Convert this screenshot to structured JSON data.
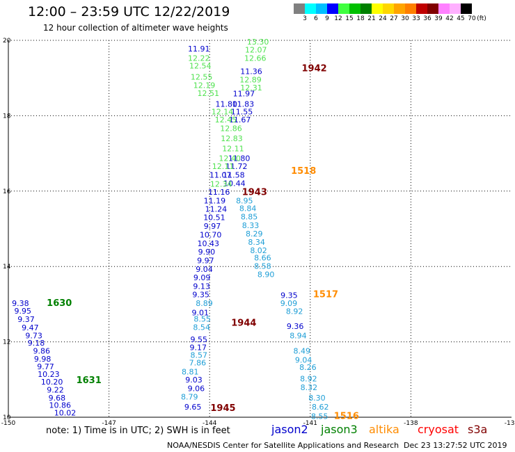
{
  "header": {
    "title": "12:00 – 23:59 UTC 12/22/2019",
    "subtitle": "12 hour collection of altimeter wave heights"
  },
  "colorbar": {
    "unit_label": "(ft)",
    "ticks": [
      "3",
      "6",
      "9",
      "12",
      "15",
      "18",
      "21",
      "24",
      "27",
      "30",
      "33",
      "36",
      "39",
      "42",
      "45",
      "70"
    ],
    "colors": [
      "#808080",
      "#00ffff",
      "#00bfff",
      "#0000ff",
      "#40ff40",
      "#00c000",
      "#008000",
      "#ffff00",
      "#ffd700",
      "#ffa500",
      "#ff7f00",
      "#c00000",
      "#800000",
      "#ff80ff",
      "#ffb0ff",
      "#000000"
    ]
  },
  "note": "note: 1) Time is in UTC; 2) SWH is in feet",
  "legend": [
    {
      "name": "jason2",
      "color": "#0000cc"
    },
    {
      "name": "jason3",
      "color": "#008000"
    },
    {
      "name": "altika",
      "color": "#ff8c00"
    },
    {
      "name": "cryosat",
      "color": "#ff0000"
    },
    {
      "name": "s3a",
      "color": "#800000"
    }
  ],
  "footer": {
    "left": "NOAA/NESDIS Center for Satellite Applications and Research",
    "right": "Dec 23 13:27:52 UTC 2019"
  },
  "chart_data": {
    "type": "scatter",
    "title": "",
    "xlabel": "",
    "ylabel": "",
    "xlim": [
      -150,
      -135
    ],
    "ylim": [
      10,
      20
    ],
    "xticks": [
      -150,
      -147,
      -144,
      -141,
      -138,
      -135
    ],
    "yticks": [
      10,
      12,
      14,
      16,
      18,
      20
    ],
    "x_tick_labels": [
      "-150",
      "-147",
      "-144",
      "-141",
      "-138",
      "-135"
    ],
    "y_tick_labels": [
      "10",
      "12",
      "14",
      "16",
      "18",
      "20"
    ],
    "grid": true,
    "series": [
      {
        "name": "blue-track-left",
        "color": "#0000cc",
        "points": [
          {
            "x": -144.32,
            "y": 19.78,
            "v": "11.91"
          },
          {
            "x": -142.76,
            "y": 19.18,
            "v": "11.36"
          },
          {
            "x": -142.98,
            "y": 18.59,
            "v": "11.97"
          },
          {
            "x": -143.5,
            "y": 18.31,
            "v": "11.80"
          },
          {
            "x": -143.0,
            "y": 18.31,
            "v": "11.83"
          },
          {
            "x": -143.04,
            "y": 18.11,
            "v": "11.55"
          },
          {
            "x": -143.1,
            "y": 17.9,
            "v": "11.67"
          },
          {
            "x": -143.12,
            "y": 16.87,
            "v": "11.80"
          },
          {
            "x": -143.2,
            "y": 16.66,
            "v": "11.72"
          },
          {
            "x": -143.68,
            "y": 16.43,
            "v": "11.07"
          },
          {
            "x": -143.28,
            "y": 16.43,
            "v": "11.58"
          },
          {
            "x": -143.26,
            "y": 16.21,
            "v": "10.44"
          },
          {
            "x": -143.72,
            "y": 15.98,
            "v": "11.16"
          },
          {
            "x": -143.85,
            "y": 15.75,
            "v": "11.19"
          },
          {
            "x": -143.81,
            "y": 15.53,
            "v": "11.24"
          },
          {
            "x": -143.86,
            "y": 15.3,
            "v": "10.51"
          },
          {
            "x": -143.92,
            "y": 15.07,
            "v": "9.97"
          },
          {
            "x": -143.97,
            "y": 14.84,
            "v": "10.70"
          },
          {
            "x": -144.04,
            "y": 14.61,
            "v": "10.43"
          },
          {
            "x": -144.09,
            "y": 14.39,
            "v": "9.90"
          },
          {
            "x": -144.12,
            "y": 14.16,
            "v": "9.97"
          },
          {
            "x": -144.16,
            "y": 13.93,
            "v": "9.04"
          },
          {
            "x": -144.23,
            "y": 13.71,
            "v": "9.09"
          },
          {
            "x": -144.24,
            "y": 13.48,
            "v": "9.13"
          },
          {
            "x": -144.26,
            "y": 13.26,
            "v": "9.35"
          },
          {
            "x": -144.28,
            "y": 12.78,
            "v": "9.01"
          },
          {
            "x": -144.32,
            "y": 12.07,
            "v": "9.55"
          },
          {
            "x": -144.34,
            "y": 11.85,
            "v": "9.17"
          },
          {
            "x": -144.47,
            "y": 11.0,
            "v": "9.03"
          },
          {
            "x": -144.4,
            "y": 10.77,
            "v": "9.06"
          },
          {
            "x": -144.5,
            "y": 10.28,
            "v": "9.65"
          },
          {
            "x": -149.64,
            "y": 13.03,
            "v": "9.38"
          },
          {
            "x": -149.57,
            "y": 12.82,
            "v": "9.95"
          },
          {
            "x": -149.47,
            "y": 12.6,
            "v": "9.37"
          },
          {
            "x": -149.35,
            "y": 12.38,
            "v": "9.47"
          },
          {
            "x": -149.24,
            "y": 12.17,
            "v": "9.73"
          },
          {
            "x": -149.17,
            "y": 11.97,
            "v": "9.18"
          },
          {
            "x": -149.01,
            "y": 11.76,
            "v": "9.86"
          },
          {
            "x": -148.98,
            "y": 11.55,
            "v": "9.98"
          },
          {
            "x": -148.89,
            "y": 11.35,
            "v": "9.77"
          },
          {
            "x": -148.8,
            "y": 11.14,
            "v": "10.23"
          },
          {
            "x": -148.7,
            "y": 10.94,
            "v": "10.20"
          },
          {
            "x": -148.6,
            "y": 10.73,
            "v": "9.22"
          },
          {
            "x": -148.55,
            "y": 10.52,
            "v": "9.68"
          },
          {
            "x": -148.46,
            "y": 10.32,
            "v": "10.86"
          },
          {
            "x": -148.31,
            "y": 10.12,
            "v": "10.02"
          },
          {
            "x": -141.63,
            "y": 13.24,
            "v": "9.35"
          },
          {
            "x": -141.45,
            "y": 12.42,
            "v": "9.36"
          }
        ]
      },
      {
        "name": "cyan-track",
        "color": "#1e9ed6",
        "points": [
          {
            "x": -142.96,
            "y": 15.75,
            "v": "8.95"
          },
          {
            "x": -142.86,
            "y": 15.54,
            "v": "8.84"
          },
          {
            "x": -142.82,
            "y": 15.32,
            "v": "8.85"
          },
          {
            "x": -142.78,
            "y": 15.09,
            "v": "8.33"
          },
          {
            "x": -142.67,
            "y": 14.87,
            "v": "8.29"
          },
          {
            "x": -142.6,
            "y": 14.65,
            "v": "8.34"
          },
          {
            "x": -142.54,
            "y": 14.43,
            "v": "8.02"
          },
          {
            "x": -142.42,
            "y": 14.23,
            "v": "8.66"
          },
          {
            "x": -142.42,
            "y": 14.01,
            "v": "8.58"
          },
          {
            "x": -142.32,
            "y": 13.79,
            "v": "8.90"
          },
          {
            "x": -141.64,
            "y": 13.03,
            "v": "9.09"
          },
          {
            "x": -141.47,
            "y": 12.81,
            "v": "8.92"
          },
          {
            "x": -141.36,
            "y": 12.17,
            "v": "8.94"
          },
          {
            "x": -141.25,
            "y": 11.76,
            "v": "8.49"
          },
          {
            "x": -141.2,
            "y": 11.52,
            "v": "9.04"
          },
          {
            "x": -141.07,
            "y": 11.33,
            "v": "8.26"
          },
          {
            "x": -141.05,
            "y": 11.02,
            "v": "8.92"
          },
          {
            "x": -141.04,
            "y": 10.79,
            "v": "8.32"
          },
          {
            "x": -140.8,
            "y": 10.52,
            "v": "8.30"
          },
          {
            "x": -140.7,
            "y": 10.28,
            "v": "8.62"
          },
          {
            "x": -140.72,
            "y": 10.03,
            "v": "8.55"
          },
          {
            "x": -144.16,
            "y": 13.03,
            "v": "8.89"
          },
          {
            "x": -144.22,
            "y": 12.61,
            "v": "8.55"
          },
          {
            "x": -144.24,
            "y": 12.39,
            "v": "8.54"
          },
          {
            "x": -144.32,
            "y": 11.65,
            "v": "8.57"
          },
          {
            "x": -144.36,
            "y": 11.45,
            "v": "7.86"
          },
          {
            "x": -144.58,
            "y": 11.21,
            "v": "8.81"
          },
          {
            "x": -144.6,
            "y": 10.54,
            "v": "8.79"
          }
        ]
      },
      {
        "name": "green-track",
        "color": "#4fe24f",
        "points": [
          {
            "x": -142.56,
            "y": 19.96,
            "v": "13.30"
          },
          {
            "x": -142.62,
            "y": 19.75,
            "v": "12.07"
          },
          {
            "x": -142.64,
            "y": 19.53,
            "v": "12.66"
          },
          {
            "x": -144.32,
            "y": 19.53,
            "v": "12.22"
          },
          {
            "x": -144.28,
            "y": 19.33,
            "v": "12.54"
          },
          {
            "x": -142.78,
            "y": 18.96,
            "v": "12.89"
          },
          {
            "x": -142.76,
            "y": 18.75,
            "v": "12.31"
          },
          {
            "x": -144.24,
            "y": 19.03,
            "v": "12.55"
          },
          {
            "x": -144.16,
            "y": 18.81,
            "v": "12.19"
          },
          {
            "x": -144.04,
            "y": 18.6,
            "v": "12.51"
          },
          {
            "x": -143.62,
            "y": 18.11,
            "v": "12.14"
          },
          {
            "x": -143.52,
            "y": 17.9,
            "v": "12.45"
          },
          {
            "x": -143.36,
            "y": 17.67,
            "v": "12.86"
          },
          {
            "x": -143.34,
            "y": 17.4,
            "v": "12.83"
          },
          {
            "x": -143.3,
            "y": 17.13,
            "v": "12.11"
          },
          {
            "x": -143.4,
            "y": 16.87,
            "v": "12.40"
          },
          {
            "x": -143.6,
            "y": 16.66,
            "v": "12.11"
          },
          {
            "x": -143.66,
            "y": 16.19,
            "v": "12.34"
          }
        ]
      }
    ],
    "pass_labels": [
      {
        "text": "1942",
        "x": -140.88,
        "y": 19.25,
        "color": "#800000"
      },
      {
        "text": "1518",
        "x": -141.2,
        "y": 16.53,
        "color": "#ff8c00"
      },
      {
        "text": "1943",
        "x": -142.66,
        "y": 15.97,
        "color": "#800000"
      },
      {
        "text": "1517",
        "x": -140.54,
        "y": 13.26,
        "color": "#ff8c00"
      },
      {
        "text": "1630",
        "x": -148.48,
        "y": 13.03,
        "color": "#008000"
      },
      {
        "text": "1944",
        "x": -142.98,
        "y": 12.5,
        "color": "#800000"
      },
      {
        "text": "1631",
        "x": -147.6,
        "y": 10.98,
        "color": "#008000"
      },
      {
        "text": "1945",
        "x": -143.6,
        "y": 10.24,
        "color": "#800000"
      },
      {
        "text": "1516",
        "x": -139.92,
        "y": 10.03,
        "color": "#ff8c00"
      }
    ]
  }
}
